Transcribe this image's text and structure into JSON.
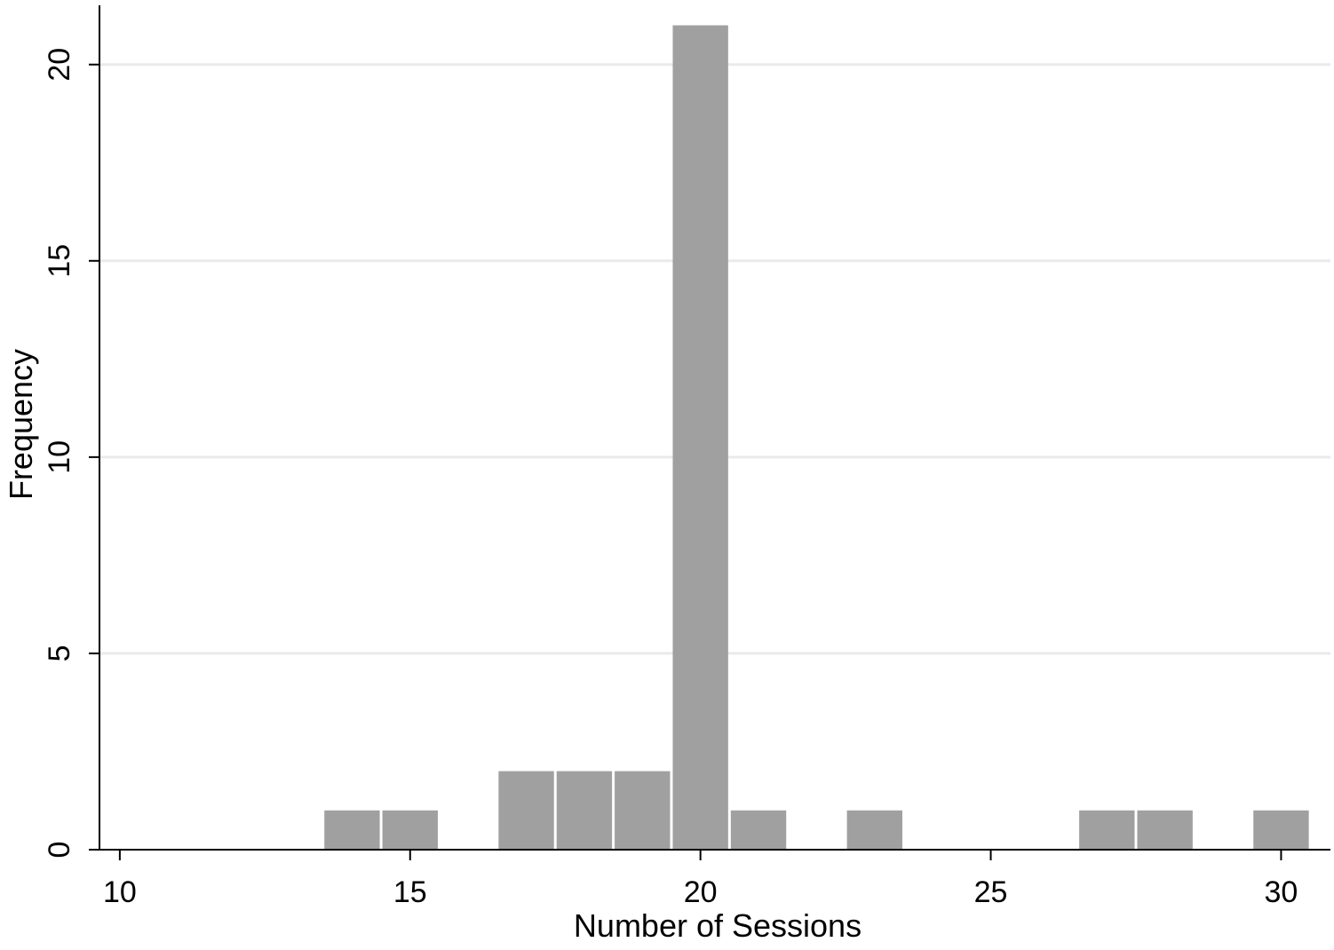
{
  "chart_data": {
    "type": "bar",
    "title": "",
    "xlabel": "Number of Sessions",
    "ylabel": "Frequency",
    "xlim": [
      9.65,
      30.85
    ],
    "ylim": [
      0,
      21
    ],
    "x_ticks": [
      10,
      15,
      20,
      25,
      30
    ],
    "y_ticks": [
      0,
      5,
      10,
      15,
      20
    ],
    "bin_width": 1,
    "bins": [
      {
        "x": 14,
        "count": 1
      },
      {
        "x": 15,
        "count": 1
      },
      {
        "x": 17,
        "count": 2
      },
      {
        "x": 18,
        "count": 2
      },
      {
        "x": 19,
        "count": 2
      },
      {
        "x": 20,
        "count": 21
      },
      {
        "x": 21,
        "count": 1
      },
      {
        "x": 23,
        "count": 1
      },
      {
        "x": 27,
        "count": 1
      },
      {
        "x": 28,
        "count": 1
      },
      {
        "x": 30,
        "count": 1
      }
    ],
    "grid": true,
    "grid_axis": "y",
    "legend": "none",
    "colors": {
      "bar": "#a0a0a0",
      "grid": "#eaeaea",
      "axis": "#000000"
    }
  }
}
